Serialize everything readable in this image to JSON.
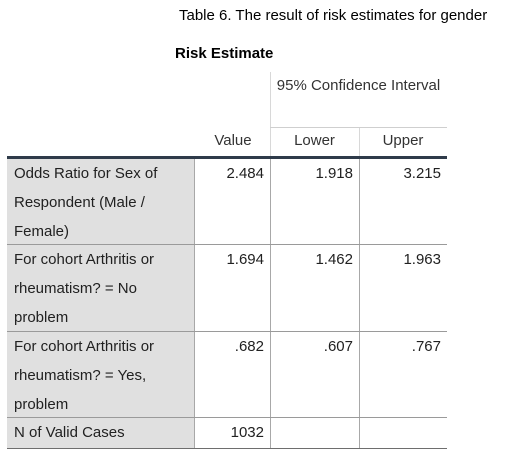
{
  "caption": "Table 6. The result of risk estimates for gender",
  "table": {
    "title": "Risk Estimate",
    "ci_label": "95% Confidence Interval",
    "columns": {
      "value": "Value",
      "lower": "Lower",
      "upper": "Upper"
    },
    "rows": [
      {
        "label": "Odds Ratio for Sex of Respondent (Male / Female)",
        "value": "2.484",
        "lower": "1.918",
        "upper": "3.215"
      },
      {
        "label": "For cohort Arthritis or rheumatism? = No problem",
        "value": "1.694",
        "lower": "1.462",
        "upper": "1.963"
      },
      {
        "label": "For cohort Arthritis or rheumatism? = Yes, problem",
        "value": ".682",
        "lower": ".607",
        "upper": ".767"
      },
      {
        "label": "N of Valid Cases",
        "value": "1032",
        "lower": "",
        "upper": ""
      }
    ]
  }
}
